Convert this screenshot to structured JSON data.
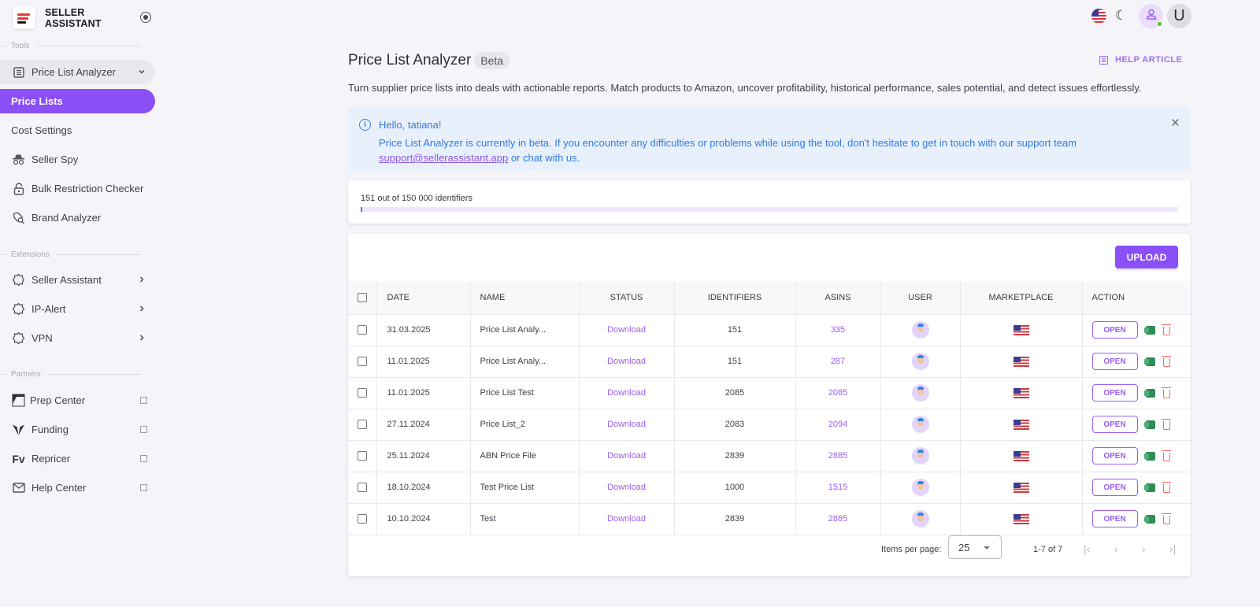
{
  "brand": {
    "name_line1": "SELLER",
    "name_line2": "ASSISTANT"
  },
  "sidebar": {
    "sections": {
      "tools": "Tools",
      "extensions": "Extensions",
      "partners": "Partners"
    },
    "tools": [
      {
        "label": "Price List Analyzer",
        "icon": "table-icon",
        "expanded": true
      },
      {
        "label": "Price Lists",
        "active": true
      },
      {
        "label": "Cost Settings"
      },
      {
        "label": "Seller Spy",
        "icon": "spy-icon"
      },
      {
        "label": "Bulk Restriction Checker",
        "icon": "lock-icon"
      },
      {
        "label": "Brand Analyzer",
        "icon": "tag-search-icon"
      }
    ],
    "extensions": [
      {
        "label": "Seller Assistant",
        "icon": "puzzle-icon"
      },
      {
        "label": "IP-Alert",
        "icon": "puzzle-icon"
      },
      {
        "label": "VPN",
        "icon": "puzzle-icon"
      }
    ],
    "partners": [
      {
        "label": "Prep Center",
        "icon": "prep-center-logo"
      },
      {
        "label": "Funding",
        "icon": "funding-logo"
      },
      {
        "label": "Repricer",
        "icon": "repricer-logo",
        "logo_text": "Fv"
      },
      {
        "label": "Help Center",
        "icon": "mail-icon"
      }
    ],
    "chevron_down": "⌄",
    "chevron_right": "›"
  },
  "topbar": {
    "avatar_letter": "U",
    "moon_glyph": "☾"
  },
  "header": {
    "title": "Price List Analyzer",
    "badge": "Beta",
    "help_article": "HELP ARTICLE",
    "description": "Turn supplier price lists into deals with actionable reports. Match products to Amazon, uncover profitability, historical performance, sales potential, and detect issues effortlessly."
  },
  "alert": {
    "info_glyph": "i",
    "greeting": "Hello, tatiana!",
    "message": "Price List Analyzer is currently in beta. If you encounter any difficulties or problems while using the tool, don't hesitate to get in touch with our support team ",
    "email": "support@sellerassistant.app",
    "message_end": " or chat with us.",
    "close_glyph": "×"
  },
  "quota": {
    "text": "151 out of 150 000 identifiers",
    "used": 151,
    "total": 150000
  },
  "table": {
    "upload_label": "UPLOAD",
    "columns": [
      "DATE",
      "NAME",
      "STATUS",
      "IDENTIFIERS",
      "ASINS",
      "USER",
      "MARKETPLACE",
      "ACTION"
    ],
    "rows": [
      {
        "date": "31.03.2025",
        "name": "Price List Analy...",
        "status": "Download",
        "identifiers": "151",
        "asins": "335",
        "action": "OPEN"
      },
      {
        "date": "11.01.2025",
        "name": "Price List Analy...",
        "status": "Download",
        "identifiers": "151",
        "asins": "287",
        "action": "OPEN"
      },
      {
        "date": "11.01.2025",
        "name": "Price List Test",
        "status": "Download",
        "identifiers": "2085",
        "asins": "2085",
        "action": "OPEN"
      },
      {
        "date": "27.11.2024",
        "name": "Price List_2",
        "status": "Download",
        "identifiers": "2083",
        "asins": "2094",
        "action": "OPEN"
      },
      {
        "date": "25.11.2024",
        "name": "ABN Price File",
        "status": "Download",
        "identifiers": "2839",
        "asins": "2885",
        "action": "OPEN"
      },
      {
        "date": "18.10.2024",
        "name": "Test Price List",
        "status": "Download",
        "identifiers": "1000",
        "asins": "1515",
        "action": "OPEN"
      },
      {
        "date": "10.10.2024",
        "name": "Test",
        "status": "Download",
        "identifiers": "2839",
        "asins": "2885",
        "action": "OPEN"
      }
    ]
  },
  "pagination": {
    "items_per_page_label": "Items per page:",
    "items_per_page": "25",
    "range": "1-7 of 7",
    "first": "|‹",
    "prev": "‹",
    "next": "›",
    "last": "›|"
  },
  "colors": {
    "accent": "#8a4ff7",
    "alert_bg": "#e8f0fc",
    "alert_text": "#2f7be6",
    "online": "#4cc431",
    "delete": "#f06a6a",
    "excel": "#2e8c57"
  }
}
